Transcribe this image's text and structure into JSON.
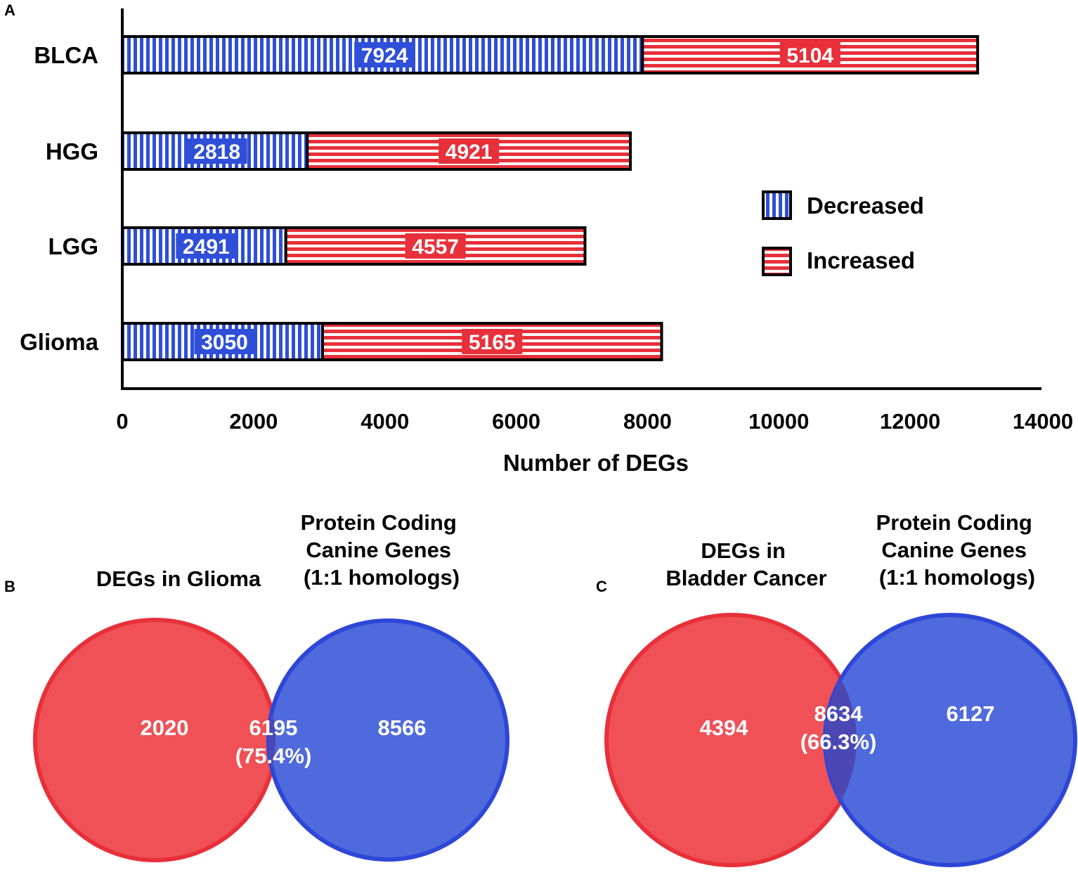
{
  "colors": {
    "blue": "#2f4fd8",
    "red": "#e8303a",
    "venn_red": "#ef5156",
    "venn_red_stroke": "#e8303a",
    "venn_blue": "#4f6adc",
    "venn_blue_stroke": "#2e46d8",
    "venn_overlap": "#4b48b5",
    "axis": "#000000"
  },
  "panels": {
    "a_label": "A",
    "b_label": "B",
    "c_label": "C"
  },
  "chart_data": [
    {
      "type": "bar",
      "orientation": "horizontal",
      "stacked": true,
      "categories": [
        "BLCA",
        "HGG",
        "LGG",
        "Glioma"
      ],
      "series": [
        {
          "name": "Decreased",
          "values": [
            7924,
            2818,
            2491,
            3050
          ],
          "pattern": "vertical-stripes"
        },
        {
          "name": "Increased",
          "values": [
            5104,
            4921,
            4557,
            5165
          ],
          "pattern": "horizontal-stripes"
        }
      ],
      "xlabel": "Number of DEGs",
      "xlim": [
        0,
        14000
      ],
      "xticks": [
        0,
        2000,
        4000,
        6000,
        8000,
        10000,
        12000,
        14000
      ],
      "legend": {
        "position": "right",
        "entries": [
          "Decreased",
          "Increased"
        ]
      },
      "grid": false
    },
    {
      "type": "venn",
      "panel": "B",
      "sets": [
        {
          "title_lines": [
            "DEGs in Glioma"
          ],
          "only": "2020"
        },
        {
          "title_lines": [
            "Protein Coding",
            "Canine Genes",
            "(1:1 homologs)"
          ],
          "only": "8566"
        }
      ],
      "overlap": {
        "count": "6195",
        "percent": "(75.4%)"
      }
    },
    {
      "type": "venn",
      "panel": "C",
      "sets": [
        {
          "title_lines": [
            "DEGs in",
            "Bladder Cancer"
          ],
          "only": "4394"
        },
        {
          "title_lines": [
            "Protein Coding",
            "Canine Genes",
            "(1:1 homologs)"
          ],
          "only": "6127"
        }
      ],
      "overlap": {
        "count": "8634",
        "percent": "(66.3%)"
      }
    }
  ]
}
